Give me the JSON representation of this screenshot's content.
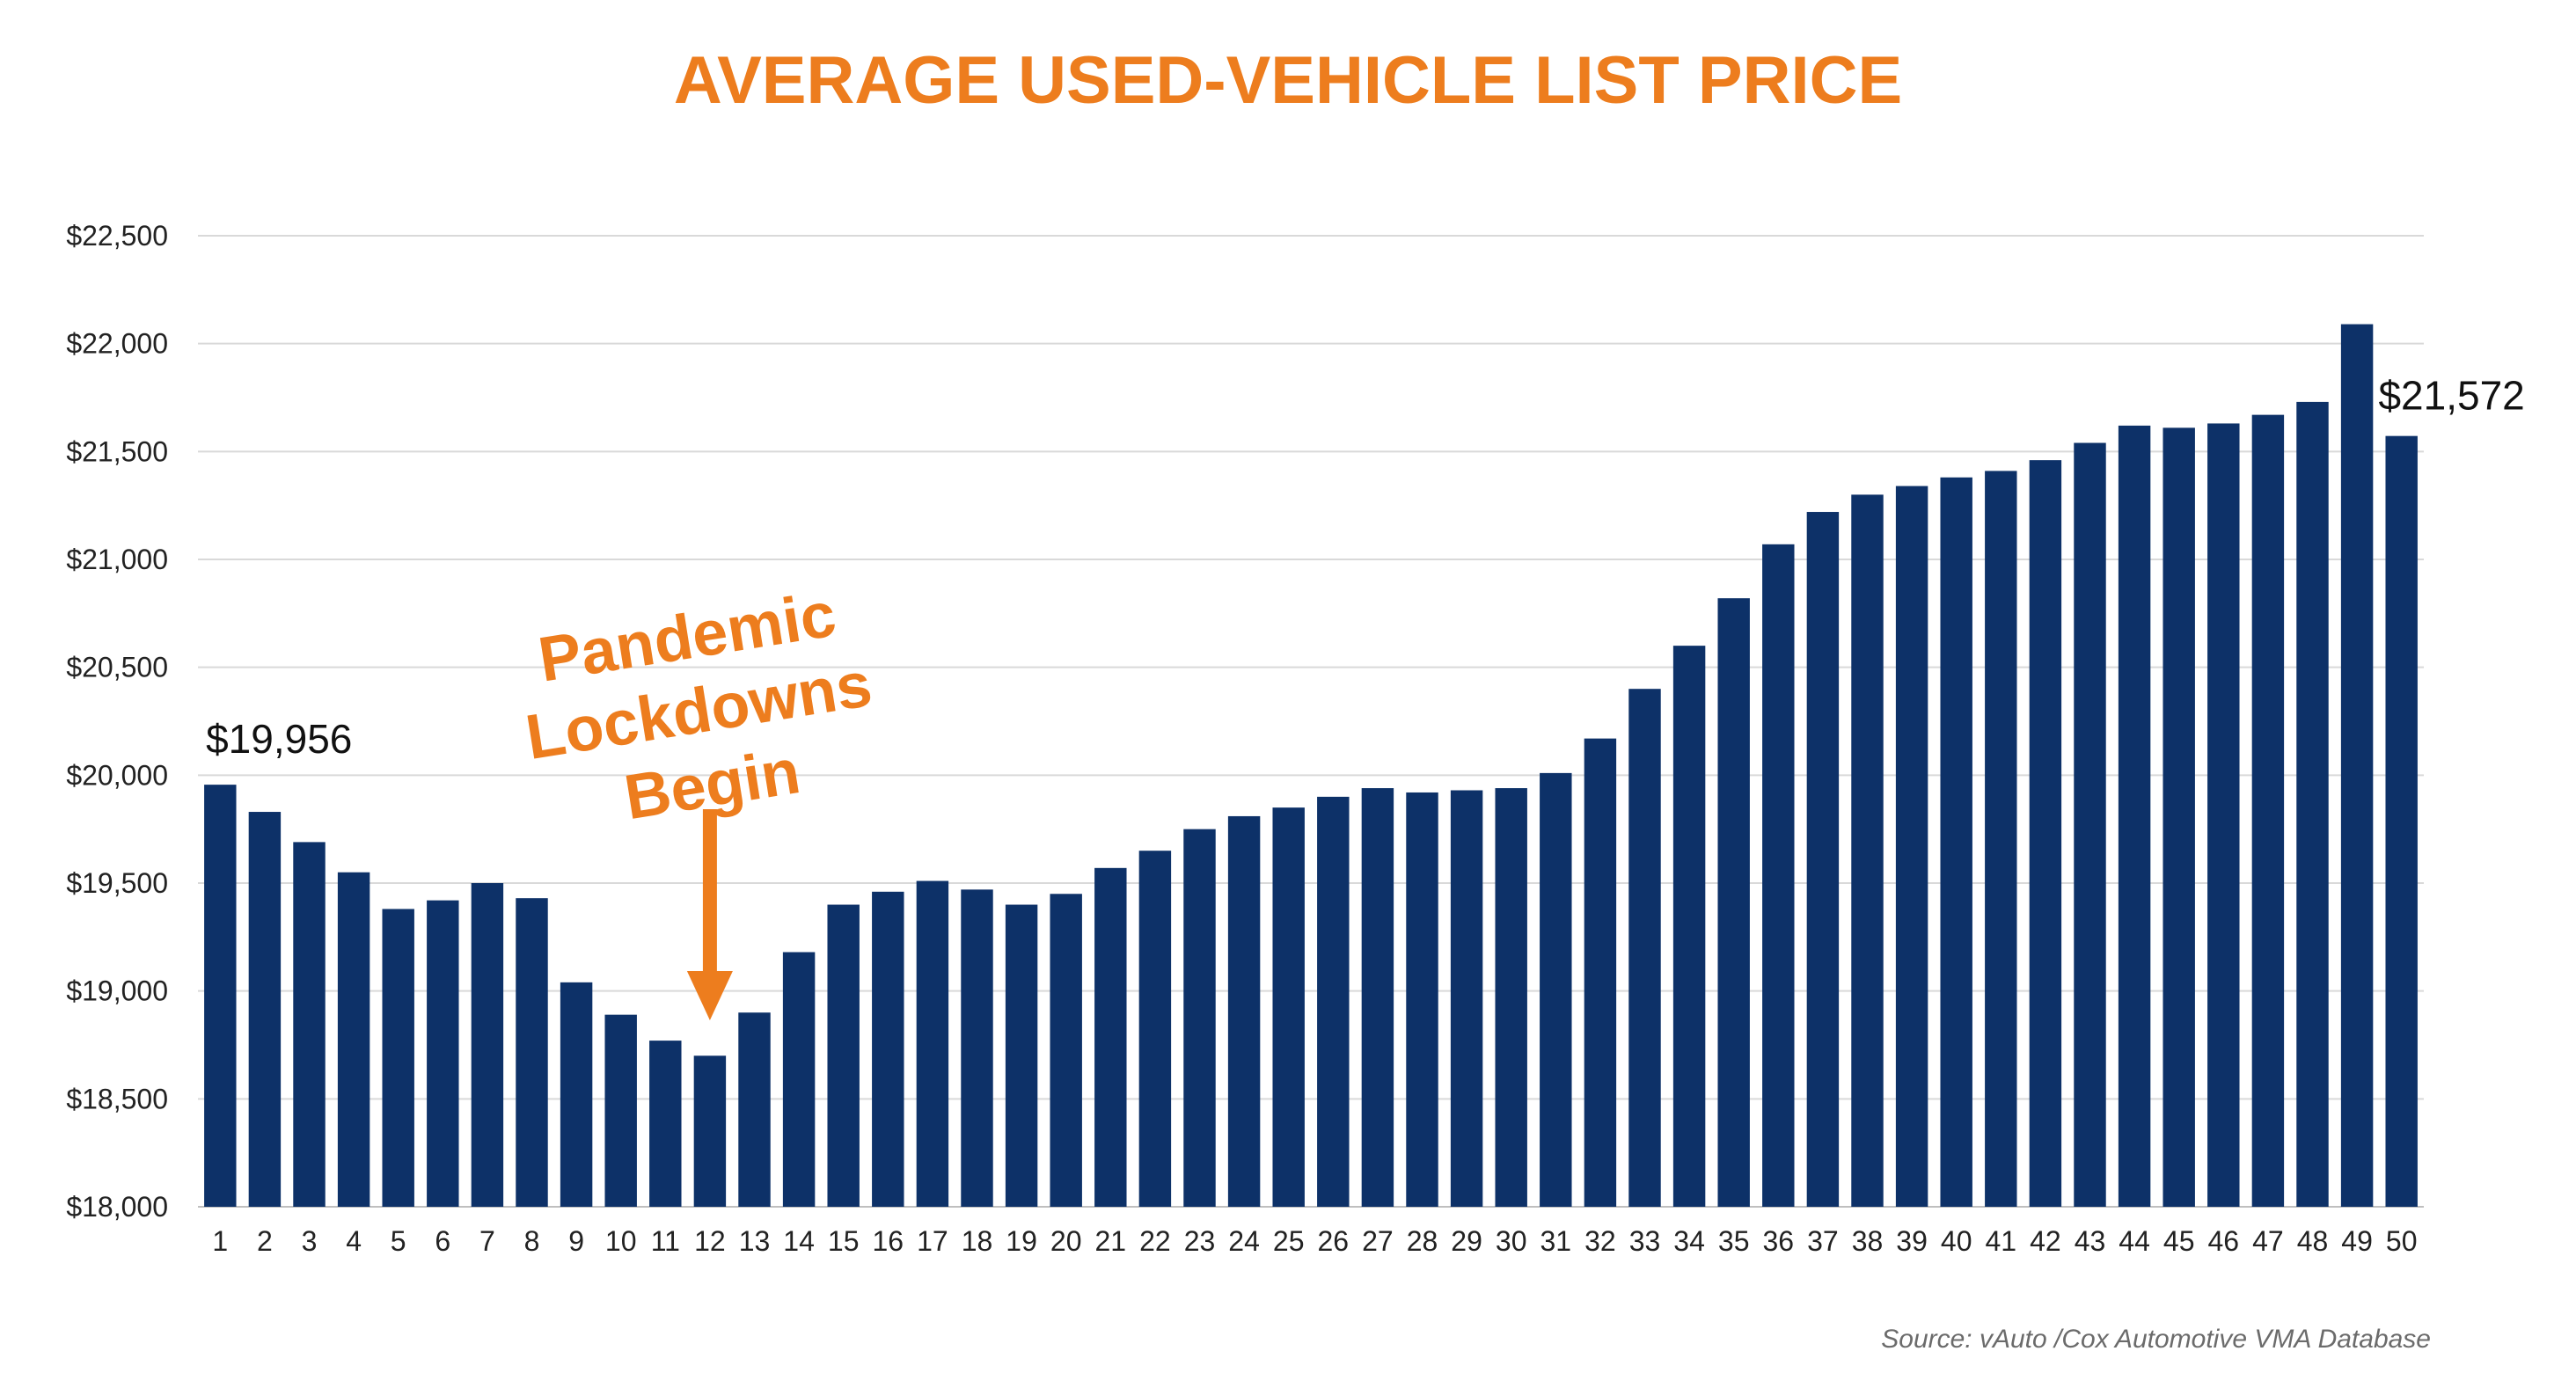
{
  "chart_data": {
    "type": "bar",
    "title": "AVERAGE USED-VEHICLE LIST PRICE",
    "xlabel": "",
    "ylabel": "",
    "ylim": [
      18000,
      22500
    ],
    "yticks": [
      18000,
      18500,
      19000,
      19500,
      20000,
      20500,
      21000,
      21500,
      22000,
      22500
    ],
    "ytick_labels": [
      "$18,000",
      "$18,500",
      "$19,000",
      "$19,500",
      "$20,000",
      "$20,500",
      "$21,000",
      "$21,500",
      "$22,000",
      "$22,500"
    ],
    "grid": true,
    "bar_color": "#0D3168",
    "categories": [
      "1",
      "2",
      "3",
      "4",
      "5",
      "6",
      "7",
      "8",
      "9",
      "10",
      "11",
      "12",
      "13",
      "14",
      "15",
      "16",
      "17",
      "18",
      "19",
      "20",
      "21",
      "22",
      "23",
      "24",
      "25",
      "26",
      "27",
      "28",
      "29",
      "30",
      "31",
      "32",
      "33",
      "34",
      "35",
      "36",
      "37",
      "38",
      "39",
      "40",
      "41",
      "42",
      "43",
      "44",
      "45",
      "46",
      "47",
      "48",
      "49",
      "50"
    ],
    "values": [
      19956,
      19830,
      19690,
      19550,
      19380,
      19420,
      19500,
      19430,
      19040,
      18890,
      18770,
      18700,
      18900,
      19180,
      19400,
      19460,
      19510,
      19470,
      19400,
      19450,
      19570,
      19650,
      19750,
      19810,
      19850,
      19900,
      19940,
      19920,
      19930,
      19940,
      20010,
      20170,
      20400,
      20600,
      20820,
      21070,
      21220,
      21300,
      21340,
      21380,
      21410,
      21460,
      21540,
      21620,
      21610,
      21630,
      21670,
      21730,
      22090,
      21572
    ],
    "data_labels": [
      {
        "index": 0,
        "text": "$19,956"
      },
      {
        "index": 49,
        "text": "$21,572"
      }
    ],
    "annotation": {
      "lines": [
        "Pandemic",
        "Lockdowns",
        "Begin"
      ],
      "points_to_index": 11,
      "color": "#ED7D1E"
    }
  },
  "source": "Source:  vAuto /Cox Automotive VMA Database"
}
